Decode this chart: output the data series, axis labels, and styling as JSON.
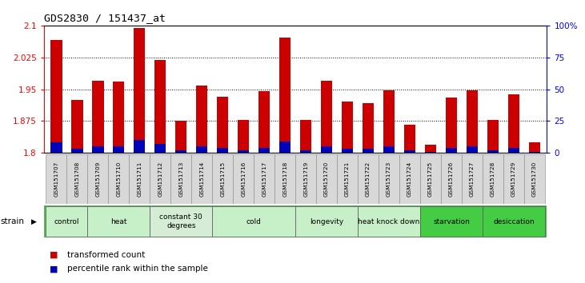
{
  "title": "GDS2830 / 151437_at",
  "samples": [
    "GSM151707",
    "GSM151708",
    "GSM151709",
    "GSM151710",
    "GSM151711",
    "GSM151712",
    "GSM151713",
    "GSM151714",
    "GSM151715",
    "GSM151716",
    "GSM151717",
    "GSM151718",
    "GSM151719",
    "GSM151720",
    "GSM151721",
    "GSM151722",
    "GSM151723",
    "GSM151724",
    "GSM151725",
    "GSM151726",
    "GSM151727",
    "GSM151728",
    "GSM151729",
    "GSM151730"
  ],
  "red_values": [
    2.065,
    1.925,
    1.97,
    1.968,
    2.095,
    2.018,
    1.875,
    1.958,
    1.932,
    1.878,
    1.945,
    2.072,
    1.878,
    1.97,
    1.92,
    1.918,
    1.948,
    1.867,
    1.82,
    1.93,
    1.948,
    1.878,
    1.938,
    1.825
  ],
  "blue_values": [
    8,
    3,
    5,
    5,
    10,
    7,
    2,
    5,
    4,
    2,
    4,
    9,
    2,
    5,
    3,
    3,
    5,
    2,
    1,
    4,
    5,
    2,
    4,
    1
  ],
  "ylim_left": [
    1.8,
    2.1
  ],
  "ylim_right": [
    0,
    100
  ],
  "yticks_left": [
    1.8,
    1.875,
    1.95,
    2.025,
    2.1
  ],
  "yticks_right": [
    0,
    25,
    50,
    75,
    100
  ],
  "ytick_labels_right": [
    "0",
    "25",
    "50",
    "75",
    "100%"
  ],
  "groups": [
    {
      "label": "control",
      "start": 0,
      "end": 2,
      "color": "#c8f0c8"
    },
    {
      "label": "heat",
      "start": 2,
      "end": 5,
      "color": "#c8f0c8"
    },
    {
      "label": "constant 30\ndegrees",
      "start": 5,
      "end": 8,
      "color": "#d4edd4"
    },
    {
      "label": "cold",
      "start": 8,
      "end": 12,
      "color": "#c8f0c8"
    },
    {
      "label": "longevity",
      "start": 12,
      "end": 15,
      "color": "#c8f0c8"
    },
    {
      "label": "heat knock down",
      "start": 15,
      "end": 18,
      "color": "#c8f0c8"
    },
    {
      "label": "starvation",
      "start": 18,
      "end": 21,
      "color": "#44cc44"
    },
    {
      "label": "desiccation",
      "start": 21,
      "end": 24,
      "color": "#44cc44"
    }
  ],
  "bar_color_red": "#cc0000",
  "bar_color_blue": "#0000bb",
  "background_color": "#ffffff",
  "strain_label": "strain",
  "legend_red": "transformed count",
  "legend_blue": "percentile rank within the sample",
  "bar_width": 0.55
}
